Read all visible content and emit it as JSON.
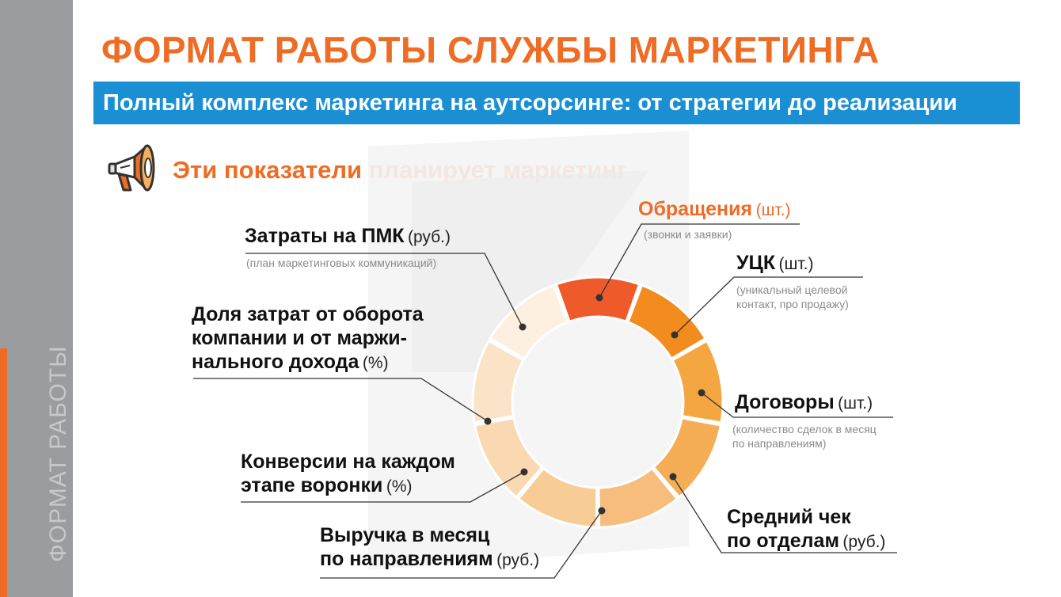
{
  "sidebar": {
    "label": "ФОРМАТ РАБОТЫ"
  },
  "title": "ФОРМАТ РАБОТЫ СЛУЖБЫ МАРКЕТИНГА",
  "subtitle": "Полный комплекс маркетинга на аутсорсинге: от стратегии до реализации",
  "section_heading": "Эти показатели планирует маркетинг",
  "icons": {
    "megaphone": "megaphone-icon"
  },
  "colors": {
    "accent": "#ef6c25",
    "banner": "#1a8fd3",
    "sidebar": "#9b9ca0",
    "segments": [
      "#ee5a2a",
      "#f28c1e",
      "#f4a640",
      "#f5ad56",
      "#f6bd7d",
      "#f8cc97",
      "#fad9b2",
      "#fbe3c8",
      "#fdf0e1"
    ]
  },
  "labels": {
    "obrashcheniya": {
      "title": "Обращения",
      "unit": "(шт.)",
      "note": "(звонки и заявки)"
    },
    "uck": {
      "title": "УЦК",
      "unit": "(шт.)",
      "note_line1": "(уникальный целевой",
      "note_line2": "контакт, про продажу)"
    },
    "dogovory": {
      "title": "Договоры",
      "unit": "(шт.)",
      "note_line1": "(количество сделок в месяц",
      "note_line2": "по направлениям)"
    },
    "sredniy_chek": {
      "line1": "Средний чек",
      "line2": "по отделам",
      "unit": "(руб.)"
    },
    "vyruchka": {
      "line1": "Выручка в месяц",
      "line2": "по направлениям",
      "unit": "(руб.)"
    },
    "konversii": {
      "line1": "Конверсии на каждом",
      "line2": "этапе воронки",
      "unit": "(%)"
    },
    "dolya": {
      "line1": "Доля затрат от оборота",
      "line2": "компании и от маржи-",
      "line3": "нального дохода",
      "unit": "(%)"
    },
    "zatraty": {
      "title": "Затраты на ПМК",
      "unit": "(руб.)",
      "note": "(план маркетинговых коммуникаций)"
    }
  }
}
